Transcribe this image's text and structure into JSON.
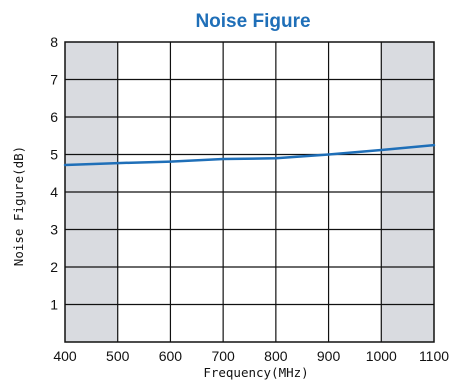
{
  "chart_data": {
    "type": "line",
    "title": "Noise Figure",
    "xlabel": "Frequency(MHz)",
    "ylabel": "Noise Figure(dB)",
    "xlim": [
      400,
      1100
    ],
    "ylim": [
      0,
      8
    ],
    "x_ticks": [
      400,
      500,
      600,
      700,
      800,
      900,
      1000,
      1100
    ],
    "y_ticks": [
      1,
      2,
      3,
      4,
      5,
      6,
      7,
      8
    ],
    "grid": true,
    "shaded_x_ranges": [
      [
        400,
        500
      ],
      [
        1000,
        1100
      ]
    ],
    "series": [
      {
        "x": [
          400,
          500,
          600,
          700,
          800,
          900,
          1000,
          1100
        ],
        "y": [
          4.72,
          4.77,
          4.81,
          4.88,
          4.9,
          5.0,
          5.12,
          5.25
        ]
      }
    ],
    "colors": {
      "line": "#1f6fb8",
      "title": "#1f6fb8",
      "shade": "#d9dbe0",
      "grid": "#111111"
    }
  }
}
